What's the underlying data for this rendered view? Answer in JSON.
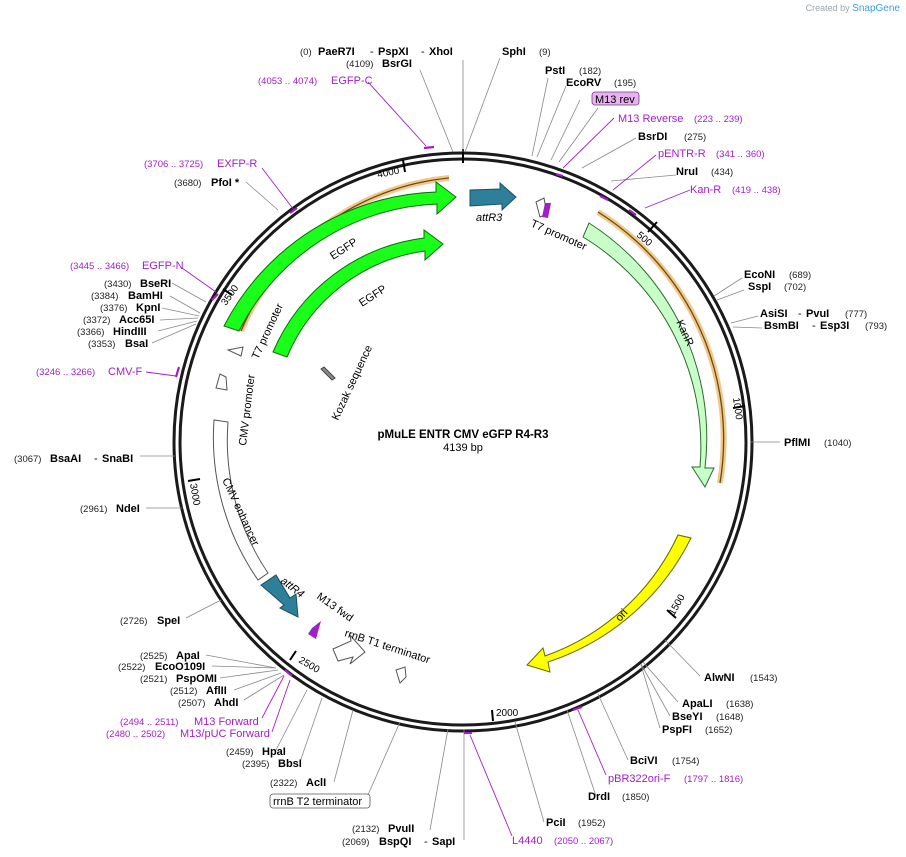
{
  "credit": {
    "prefix": "Created by",
    "brand": "SnapGene"
  },
  "plasmid": {
    "name": "pMuLE ENTR CMV eGFP R4-R3",
    "size": "4139 bp",
    "length": 4139
  },
  "ticks": [
    "500",
    "1000",
    "1500",
    "2000",
    "2500",
    "3000",
    "3500",
    "4000"
  ],
  "enzymes": {
    "paer7i": "PaeR7I",
    "pspxi": "PspXI",
    "xhoi": "XhoI",
    "pos0": "(0)",
    "bsrgi": "BsrGI",
    "pos4109": "(4109)",
    "sphi": "SphI",
    "pos9": "(9)",
    "psti": "PstI",
    "pos182": "(182)",
    "ecorv": "EcoRV",
    "pos195": "(195)",
    "bsrdi": "BsrDI",
    "pos275": "(275)",
    "nrui": "NruI",
    "pos434": "(434)",
    "econi": "EcoNI",
    "pos689": "(689)",
    "sspi": "SspI",
    "pos702": "(702)",
    "asisi": "AsiSI",
    "pvui": "PvuI",
    "pos777": "(777)",
    "bsmbi": "BsmBI",
    "esp3i": "Esp3I",
    "pos793": "(793)",
    "pflmi": "PflMI",
    "pos1040": "(1040)",
    "alwni": "AlwNI",
    "pos1543": "(1543)",
    "apali": "ApaLI",
    "pos1638": "(1638)",
    "bseyi": "BseYI",
    "pos1648": "(1648)",
    "pspfi": "PspFI",
    "pos1652": "(1652)",
    "bcivi": "BciVI",
    "pos1754": "(1754)",
    "drdi": "DrdI",
    "pos1850": "(1850)",
    "pcii": "PciI",
    "pos1952": "(1952)",
    "pvuii": "PvuII",
    "pos2132": "(2132)",
    "bspqi": "BspQI",
    "sapi": "SapI",
    "pos2069": "(2069)",
    "acli": "AclI",
    "pos2322": "(2322)",
    "bbsi": "BbsI",
    "pos2395": "(2395)",
    "hpai": "HpaI",
    "pos2459": "(2459)",
    "ahdi": "AhdI",
    "pos2507": "(2507)",
    "aflii": "AflII",
    "pos2512": "(2512)",
    "pspomi": "PspOMI",
    "pos2521": "(2521)",
    "eco0109i": "EcoO109I",
    "pos2522": "(2522)",
    "apai": "ApaI",
    "pos2525": "(2525)",
    "spei": "SpeI",
    "pos2726": "(2726)",
    "ndei": "NdeI",
    "pos2961": "(2961)",
    "bsaai": "BsaAI",
    "snabi": "SnaBI",
    "pos3067": "(3067)",
    "bsai": "BsaI",
    "pos3353": "(3353)",
    "hindiii": "HindIII",
    "pos3366": "(3366)",
    "acc65i": "Acc65I",
    "pos3372": "(3372)",
    "kpni": "KpnI",
    "pos3376": "(3376)",
    "bamhi": "BamHI",
    "pos3384": "(3384)",
    "bseri": "BseRI",
    "pos3430": "(3430)",
    "pfoi": "PfoI *",
    "pos3680": "(3680)"
  },
  "primers": {
    "egfpc": "EGFP-C",
    "egfpc_pos": "(4053 .. 4074)",
    "m13rev": "M13 rev",
    "m13reverse": "M13 Reverse",
    "m13reverse_pos": "(223 .. 239)",
    "pentrr": "pENTR-R",
    "pentrr_pos": "(341 .. 360)",
    "kanr": "Kan-R",
    "kanr_pos": "(419 .. 438)",
    "exfpr": "EXFP-R",
    "exfpr_pos": "(3706 .. 3725)",
    "egfpn": "EGFP-N",
    "egfpn_pos": "(3445 .. 3466)",
    "cmvf": "CMV-F",
    "cmvf_pos": "(3246 .. 3266)",
    "m13forward": "M13 Forward",
    "m13forward_pos": "(2494 .. 2511)",
    "m13puc": "M13/pUC Forward",
    "m13puc_pos": "(2480 .. 2502)",
    "pbr322": "pBR322ori-F",
    "pbr322_pos": "(1797 .. 1816)",
    "l4440": "L4440",
    "l4440_pos": "(2050 .. 2067)"
  },
  "features": {
    "attr3": "attR3",
    "t7promoter_a": "T7 promoter",
    "kanr": "KanR",
    "ori": "ori",
    "rrnbt1": "rrnB T1 terminator",
    "rrnbt2": "rrnB T2 terminator",
    "m13fwd": "M13 fwd",
    "attr4": "attR4",
    "cmvenh": "CMV enhancer",
    "cmvprom": "CMV promoter",
    "t7promoter_b": "T7 promoter",
    "egfp1": "EGFP",
    "egfp2": "EGFP",
    "kozak": "Kozak sequence"
  },
  "colors": {
    "backbone": "#1a1a1a",
    "egfp": "#1aff1a",
    "kanr": "#c8ffc8",
    "ori": "#ffff00",
    "att": "#2e7f99",
    "primer": "#a020c8",
    "orf": "#e8a33c"
  }
}
